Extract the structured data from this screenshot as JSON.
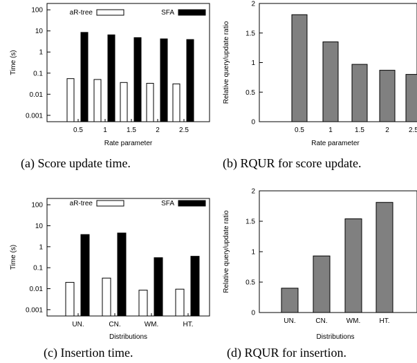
{
  "chart_data": [
    {
      "type": "bar",
      "scale": "log",
      "ylim": [
        0.0005,
        200
      ],
      "ytick_labels": [
        "100",
        "10",
        "1",
        "0.1",
        "0.01",
        "0.001"
      ],
      "ytick_values": [
        100,
        10,
        1,
        0.1,
        0.01,
        0.001
      ],
      "ylabel": "Time (s)",
      "xlabel": "Rate parameter",
      "categories": [
        "0.5",
        "1",
        "1.5",
        "2",
        "2.5"
      ],
      "series": [
        {
          "name": "aR-tree",
          "color": "#ffffff",
          "values": [
            0.055,
            0.05,
            0.036,
            0.033,
            0.031
          ]
        },
        {
          "name": "SFA",
          "color": "#000000",
          "values": [
            8.5,
            6.5,
            4.8,
            4.2,
            3.9
          ]
        }
      ],
      "legend": "top",
      "caption": "(a) Score update time."
    },
    {
      "type": "bar",
      "scale": "linear",
      "ylim": [
        0,
        2
      ],
      "ytick_labels": [
        "2",
        "1.5",
        "1",
        "0.5",
        "0"
      ],
      "ytick_values": [
        2,
        1.5,
        1,
        0.5,
        0
      ],
      "ylabel": "Relative query/update ratio",
      "xlabel": "Rate parameter",
      "categories": [
        "0.5",
        "1",
        "1.5",
        "2",
        "2.5"
      ],
      "series": [
        {
          "color": "#808080",
          "values": [
            1.81,
            1.35,
            0.97,
            0.87,
            0.8
          ]
        }
      ],
      "caption": "(b) RQUR for score update."
    },
    {
      "type": "bar",
      "scale": "log",
      "ylim": [
        0.0005,
        200
      ],
      "ytick_labels": [
        "100",
        "10",
        "1",
        "0.1",
        "0.01",
        "0.001"
      ],
      "ytick_values": [
        100,
        10,
        1,
        0.1,
        0.01,
        0.001
      ],
      "ylabel": "Time (s)",
      "xlabel": "Distributions",
      "categories": [
        "UN.",
        "CN.",
        "WM.",
        "HT."
      ],
      "series": [
        {
          "name": "aR-tree",
          "color": "#ffffff",
          "values": [
            0.02,
            0.032,
            0.0085,
            0.0095
          ]
        },
        {
          "name": "SFA",
          "color": "#000000",
          "values": [
            3.8,
            4.5,
            0.3,
            0.35
          ]
        }
      ],
      "legend": "top",
      "caption": "(c) Insertion time."
    },
    {
      "type": "bar",
      "scale": "linear",
      "ylim": [
        0,
        2
      ],
      "ytick_labels": [
        "2",
        "1.5",
        "1",
        "0.5",
        "0"
      ],
      "ytick_values": [
        2,
        1.5,
        1,
        0.5,
        0
      ],
      "ylabel": "Relative query/update ratio",
      "xlabel": "Distributions",
      "categories": [
        "UN.",
        "CN.",
        "WM.",
        "HT."
      ],
      "series": [
        {
          "color": "#808080",
          "values": [
            0.4,
            0.93,
            1.54,
            1.81
          ]
        }
      ],
      "caption": "(d) RQUR for insertion."
    }
  ]
}
